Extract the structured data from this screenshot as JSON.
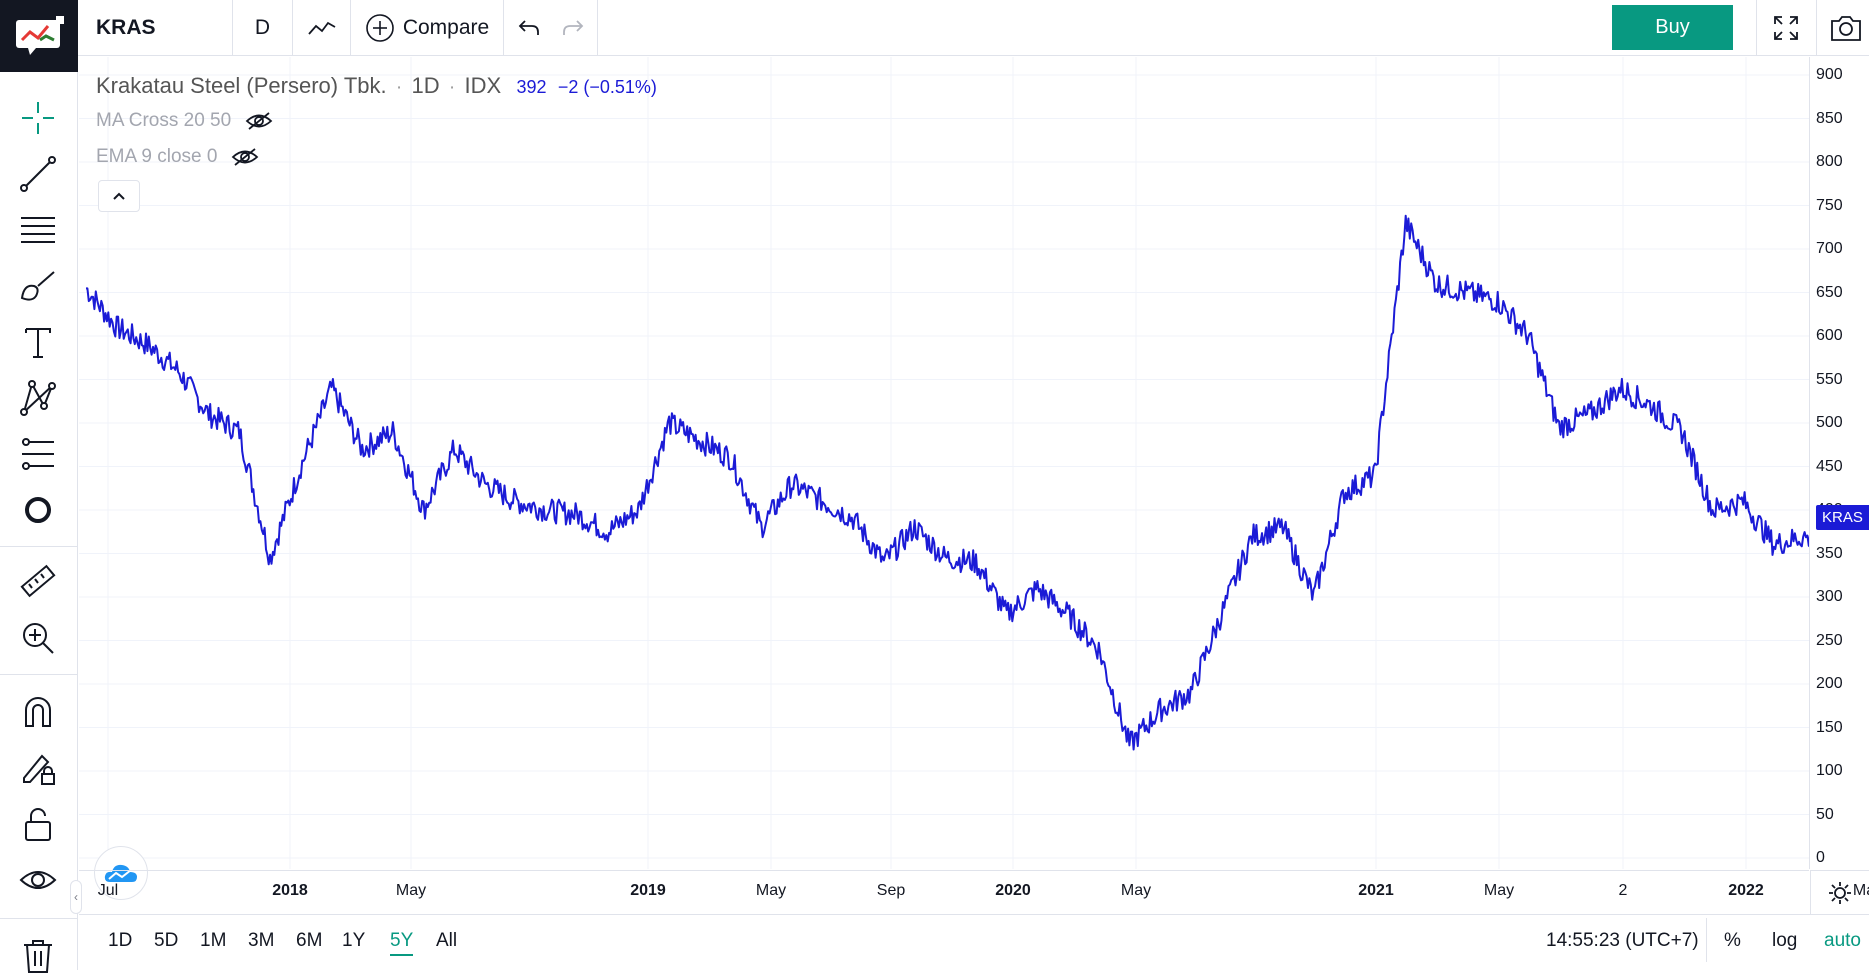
{
  "toolbar": {
    "symbol": "KRAS",
    "interval": "D",
    "compare_label": "Compare",
    "buy_label": "Buy",
    "colors": {
      "buy": "#089981",
      "accent": "#2962ff"
    }
  },
  "legend": {
    "name": "Krakatau Steel (Persero) Tbk.",
    "sep": "·",
    "interval": "1D",
    "exchange": "IDX",
    "price": "392",
    "change": "−2 (−0.51%)",
    "indicators": [
      "MA Cross 20 50",
      "EMA 9 close 0"
    ]
  },
  "left_tools": [
    "crosshair-icon",
    "trend-line-icon",
    "fib-icon",
    "brush-icon",
    "text-icon",
    "pattern-icon",
    "prediction-icon",
    "circle-icon",
    "ruler-icon",
    "zoom-in-icon",
    "magnet-icon",
    "lock-draw-icon",
    "lock-icon",
    "eye-icon",
    "trash-icon"
  ],
  "price_axis": {
    "ticks": [
      "900",
      "850",
      "800",
      "750",
      "700",
      "650",
      "600",
      "550",
      "500",
      "450",
      "400",
      "350",
      "300",
      "250",
      "200",
      "150",
      "100",
      "50",
      "0"
    ],
    "last_label": "KRAS",
    "last_value": "392",
    "line_color": "#1b1bd6"
  },
  "time_axis": {
    "labels": [
      {
        "text": "Jul",
        "bold": false
      },
      {
        "text": "2018",
        "bold": true
      },
      {
        "text": "May",
        "bold": false
      },
      {
        "text": "2019",
        "bold": true
      },
      {
        "text": "May",
        "bold": false
      },
      {
        "text": "Sep",
        "bold": false
      },
      {
        "text": "2020",
        "bold": true
      },
      {
        "text": "May",
        "bold": false
      },
      {
        "text": "2021",
        "bold": true
      },
      {
        "text": "May",
        "bold": false
      },
      {
        "text": "2",
        "bold": false
      },
      {
        "text": "2022",
        "bold": true
      },
      {
        "text": "May",
        "bold": false
      }
    ]
  },
  "bottom": {
    "ranges": [
      "1D",
      "5D",
      "1M",
      "3M",
      "6M",
      "1Y",
      "5Y",
      "All"
    ],
    "active_range": "5Y",
    "clock": "14:55:23 (UTC+7)",
    "percent": "%",
    "log": "log",
    "auto": "auto"
  },
  "chart_data": {
    "type": "line",
    "series": [
      {
        "x": [
          "2017-07",
          "2017-08",
          "2017-09",
          "2017-10",
          "2017-11",
          "2017-12",
          "2018-01",
          "2018-02",
          "2018-03",
          "2018-04",
          "2018-05",
          "2018-06",
          "2018-07",
          "2018-08",
          "2018-09",
          "2018-10",
          "2018-11",
          "2018-12",
          "2019-01",
          "2019-02",
          "2019-03",
          "2019-04",
          "2019-05",
          "2019-06",
          "2019-07",
          "2019-08",
          "2019-09",
          "2019-10",
          "2019-11",
          "2019-12",
          "2020-01",
          "2020-02",
          "2020-03",
          "2020-04",
          "2020-05",
          "2020-06",
          "2020-07",
          "2020-08",
          "2020-09",
          "2020-10",
          "2020-11",
          "2020-12",
          "2021-01",
          "2021-02",
          "2021-03",
          "2021-04",
          "2021-05",
          "2021-06",
          "2021-07",
          "2021-08",
          "2021-09",
          "2021-10",
          "2021-11",
          "2021-12",
          "2022-01",
          "2022-02",
          "2022-03",
          "2022-04",
          "2022-05"
        ],
        "values": [
          655,
          610,
          590,
          560,
          510,
          490,
          345,
          450,
          540,
          470,
          490,
          400,
          470,
          430,
          410,
          400,
          395,
          375,
          400,
          500,
          480,
          460,
          380,
          430,
          410,
          390,
          340,
          380,
          345,
          340,
          280,
          310,
          280,
          240,
          130,
          170,
          190,
          280,
          370,
          380,
          300,
          420,
          440,
          730,
          660,
          650,
          640,
          600,
          495,
          510,
          540,
          520,
          490,
          400,
          410,
          360,
          370,
          340,
          392
        ]
      }
    ],
    "ylim": [
      0,
      900
    ],
    "y_ticks": [
      0,
      50,
      100,
      150,
      200,
      250,
      300,
      350,
      400,
      450,
      500,
      550,
      600,
      650,
      700,
      750,
      800,
      850,
      900
    ],
    "grid": true,
    "legend": "none",
    "last_value": 392
  }
}
